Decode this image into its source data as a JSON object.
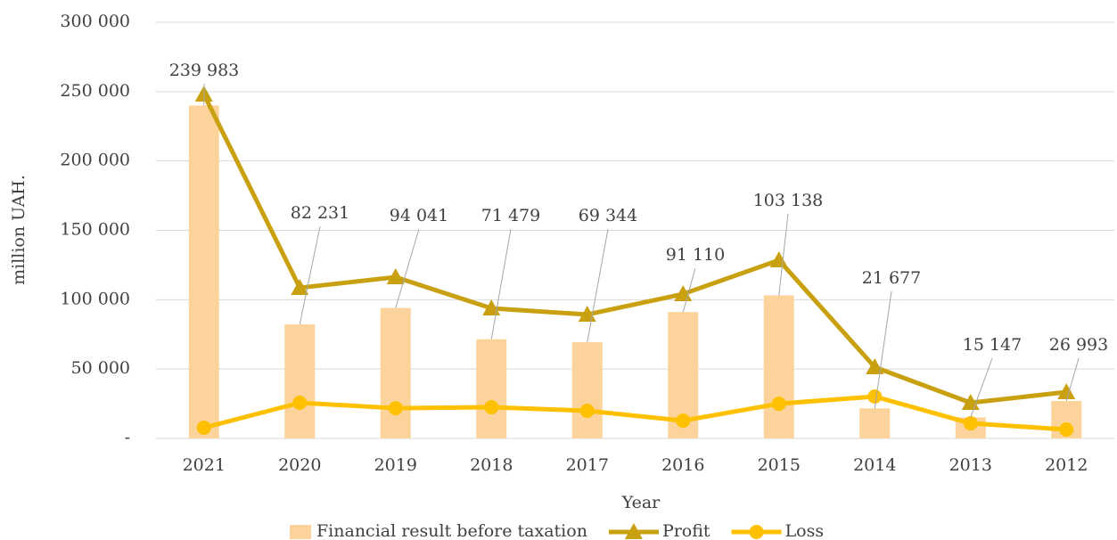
{
  "chart_data": {
    "type": "bar_line",
    "x_label": "Year",
    "y_label": "million UAH.",
    "categories": [
      "2021",
      "2020",
      "2019",
      "2018",
      "2017",
      "2016",
      "2015",
      "2014",
      "2013",
      "2012"
    ],
    "series": [
      {
        "name": "Financial result before taxation",
        "type": "bar",
        "color": "#fcd49b",
        "values": [
          239983,
          82231,
          94041,
          71479,
          69344,
          91110,
          103138,
          21677,
          15147,
          26993
        ],
        "value_labels": [
          "239 983",
          "82 231",
          "94 041",
          "71 479",
          "69 344",
          "91 110",
          "103 138",
          "21 677",
          "15 147",
          "26 993"
        ]
      },
      {
        "name": "Profit",
        "type": "line",
        "marker": "triangle",
        "color": "#c9a010",
        "values": [
          248000,
          108600,
          116300,
          93800,
          89300,
          104100,
          128500,
          51400,
          25700,
          33400
        ]
      },
      {
        "name": "Loss",
        "type": "line",
        "marker": "circle",
        "color": "#ffc000",
        "values": [
          7700,
          25700,
          21800,
          22500,
          19900,
          12800,
          25000,
          30200,
          10900,
          6400
        ]
      }
    ],
    "ylim": [
      0,
      300000
    ],
    "yticks": [
      {
        "value": 0,
        "label": "-"
      },
      {
        "value": 50000,
        "label": "50 000"
      },
      {
        "value": 100000,
        "label": "100 000"
      },
      {
        "value": 150000,
        "label": "150 000"
      },
      {
        "value": 200000,
        "label": "200 000"
      },
      {
        "value": 250000,
        "label": "250 000"
      },
      {
        "value": 300000,
        "label": "300 000"
      }
    ],
    "grid": true,
    "legend": "bottom"
  }
}
